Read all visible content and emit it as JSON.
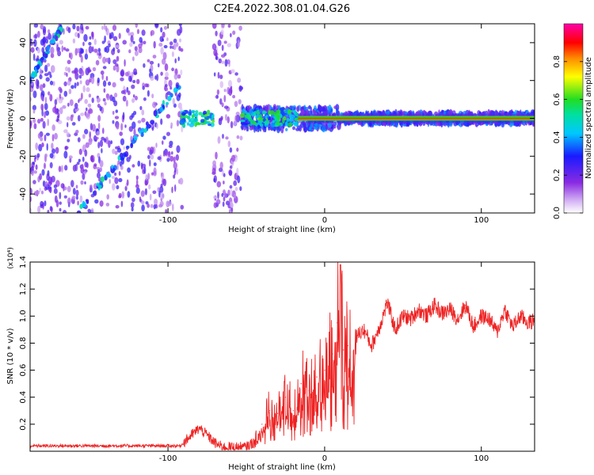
{
  "title": "C2E4.2022.308.01.04.G26",
  "colorbar": {
    "label": "Normalized spectral amplitude",
    "ticks": [
      "0.0",
      "0.2",
      "0.4",
      "0.6",
      "0.8"
    ]
  },
  "chart_data": [
    {
      "type": "heatmap",
      "xlabel": "Height of straight line (km)",
      "ylabel": "Frequency (Hz)",
      "xlim": [
        -188,
        134
      ],
      "ylim": [
        -50,
        50
      ],
      "xticks": [
        -100,
        0,
        100
      ],
      "xtick_labels": [
        "-100",
        "0",
        "100"
      ],
      "yticks": [
        -40,
        -20,
        0,
        20,
        40
      ],
      "ytick_labels": [
        "-40",
        "-20",
        "0",
        "20",
        "40"
      ],
      "colorscale": "rainbow (white-purple-blue-cyan-green-yellow-red-magenta)",
      "vmin": 0.0,
      "vmax": 1.0,
      "gap_regions_km": [
        [
          -91,
          -71
        ],
        [
          -53,
          -17
        ]
      ],
      "dominant_ridge": {
        "x_from": -17,
        "x_to": 134,
        "frequency_hz": 0,
        "amplitude": 0.8
      },
      "diagonal_ridges": [
        {
          "x": [
            -188,
            -168
          ],
          "frequency_hz": [
            20,
            48
          ]
        },
        {
          "x": [
            -158,
            -92
          ],
          "frequency_hz": [
            -50,
            18
          ]
        }
      ]
    },
    {
      "type": "line",
      "xlabel": "Height of straight line (km)",
      "ylabel": "SNR (10 * v/v)",
      "y_multiplier": "(x10⁴)",
      "xlim": [
        -188,
        134
      ],
      "ylim": [
        0,
        1.4
      ],
      "xticks": [
        -100,
        0,
        100
      ],
      "xtick_labels": [
        "-100",
        "0",
        "100"
      ],
      "yticks": [
        0.2,
        0.4,
        0.6,
        0.8,
        1.0,
        1.2,
        1.4
      ],
      "ytick_labels": [
        "0.2",
        "0.4",
        "0.6",
        "0.8",
        "1.0",
        "1.2",
        "1.4"
      ],
      "color": "#ee2222",
      "x": [
        -188,
        -170,
        -150,
        -130,
        -110,
        -92,
        -85,
        -80,
        -75,
        -70,
        -65,
        -60,
        -50,
        -45,
        -40,
        -35,
        -30,
        -25,
        -20,
        -15,
        -10,
        -5,
        0,
        5,
        8,
        10,
        12,
        15,
        20,
        25,
        30,
        35,
        40,
        45,
        50,
        55,
        60,
        65,
        70,
        75,
        80,
        85,
        90,
        95,
        100,
        105,
        110,
        115,
        120,
        125,
        130,
        134
      ],
      "y": [
        0.04,
        0.04,
        0.04,
        0.04,
        0.04,
        0.04,
        0.12,
        0.17,
        0.12,
        0.06,
        0.03,
        0.03,
        0.03,
        0.07,
        0.2,
        0.3,
        0.28,
        0.4,
        0.3,
        0.5,
        0.45,
        0.55,
        0.6,
        0.72,
        0.95,
        1.38,
        0.75,
        0.78,
        0.85,
        0.9,
        0.78,
        0.92,
        1.1,
        0.9,
        1.0,
        0.98,
        1.05,
        1.0,
        1.08,
        1.02,
        1.05,
        0.98,
        1.08,
        0.92,
        1.0,
        0.98,
        0.88,
        1.05,
        0.92,
        1.0,
        0.95,
        0.97
      ]
    }
  ]
}
